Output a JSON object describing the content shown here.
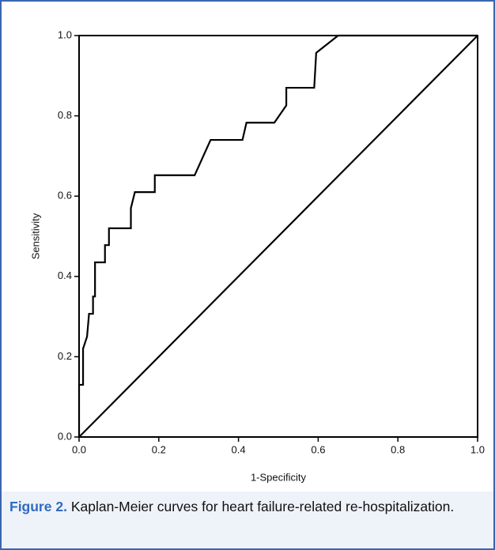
{
  "chart_data": {
    "type": "line",
    "xlabel": "1-Specificity",
    "ylabel": "Sensitivity",
    "xlim": [
      0,
      1
    ],
    "ylim": [
      0,
      1
    ],
    "xticks": [
      {
        "value": 0,
        "label": "0.0"
      },
      0.2,
      0.4,
      0.6,
      0.8,
      {
        "value": 1,
        "label": "1.0"
      }
    ],
    "yticks": [
      {
        "value": 0,
        "label": "0.0"
      },
      0.2,
      0.4,
      0.6,
      0.8,
      {
        "value": 1,
        "label": "1.0"
      }
    ],
    "series": [
      {
        "color": "#000000",
        "x": [
          0,
          0,
          0.01,
          0.01,
          0.02,
          0.025,
          0.035,
          0.035,
          0.04,
          0.04,
          0.065,
          0.065,
          0.075,
          0.075,
          0.13,
          0.13,
          0.14,
          0.19,
          0.19,
          0.29,
          0.31,
          0.33,
          0.33,
          0.41,
          0.42,
          0.49,
          0.52,
          0.52,
          0.59,
          0.595,
          0.65,
          1
        ],
        "values": [
          0,
          0.13,
          0.13,
          0.22,
          0.25,
          0.307,
          0.307,
          0.35,
          0.35,
          0.435,
          0.435,
          0.478,
          0.478,
          0.52,
          0.52,
          0.57,
          0.61,
          0.61,
          0.652,
          0.652,
          0.696,
          0.74,
          0.74,
          0.74,
          0.783,
          0.783,
          0.826,
          0.87,
          0.87,
          0.957,
          1,
          1
        ]
      },
      {
        "color": "#000000",
        "x": [
          0,
          1
        ],
        "values": [
          0,
          1
        ]
      }
    ]
  },
  "caption": {
    "label": "Figure 2.",
    "text": "Kaplan-Meier curves for heart failure-related re-hospitalization."
  }
}
